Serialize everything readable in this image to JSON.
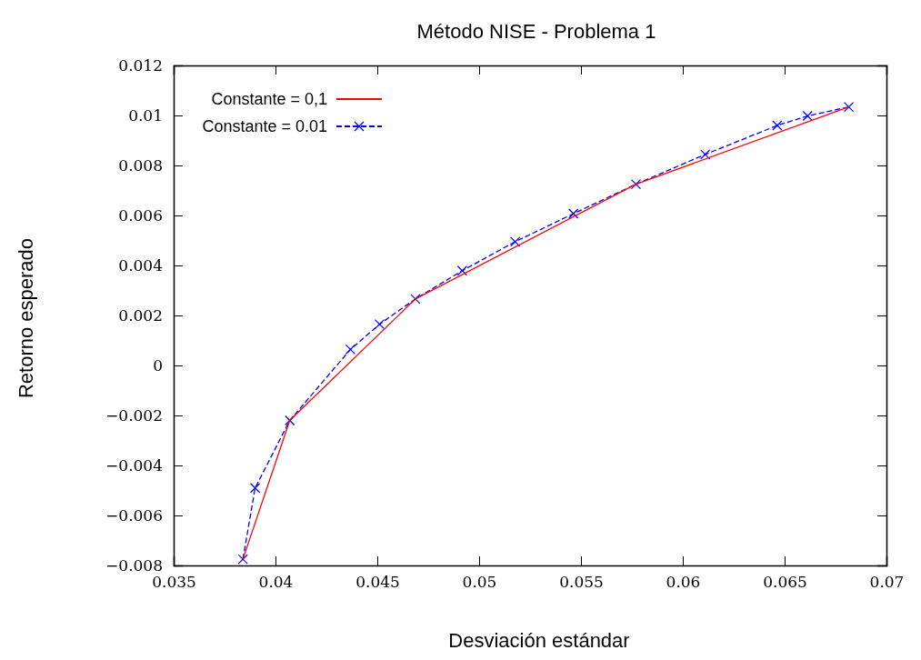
{
  "chart_data": {
    "type": "line",
    "title": "Método NISE - Problema 1",
    "xlabel": "Desviación estándar",
    "ylabel": "Retorno esperado",
    "xlim": [
      0.035,
      0.07
    ],
    "xticks": [
      0.035,
      0.04,
      0.045,
      0.05,
      0.055,
      0.06,
      0.065,
      0.07
    ],
    "ylim": [
      -0.008,
      0.012
    ],
    "yticks": [
      -0.008,
      -0.006,
      -0.004,
      -0.002,
      0,
      0.002,
      0.004,
      0.006,
      0.008,
      0.01,
      0.012
    ],
    "grid": false,
    "legend": "top left",
    "series": [
      {
        "name": "Constante = 0,1",
        "color": "#ff0000",
        "marker": "none",
        "line_style": "solid",
        "x": [
          0.0384,
          0.0407,
          0.04687,
          0.0577,
          0.06815
        ],
        "values": [
          -0.00775,
          -0.0022,
          0.00266,
          0.00725,
          0.01034
        ]
      },
      {
        "name": "Constante = 0.01",
        "color": "#0000ff",
        "marker": "cross",
        "line_style": "dashed",
        "x": [
          0.0384,
          0.039,
          0.0407,
          0.04368,
          0.04511,
          0.04687,
          0.04917,
          0.05177,
          0.05463,
          0.0577,
          0.0611,
          0.06464,
          0.06613,
          0.06815
        ],
        "values": [
          -0.00775,
          -0.0049,
          -0.0022,
          0.00064,
          0.00165,
          0.00266,
          0.00379,
          0.00495,
          0.00607,
          0.00725,
          0.00844,
          0.0096,
          0.00998,
          0.01034
        ]
      }
    ]
  }
}
